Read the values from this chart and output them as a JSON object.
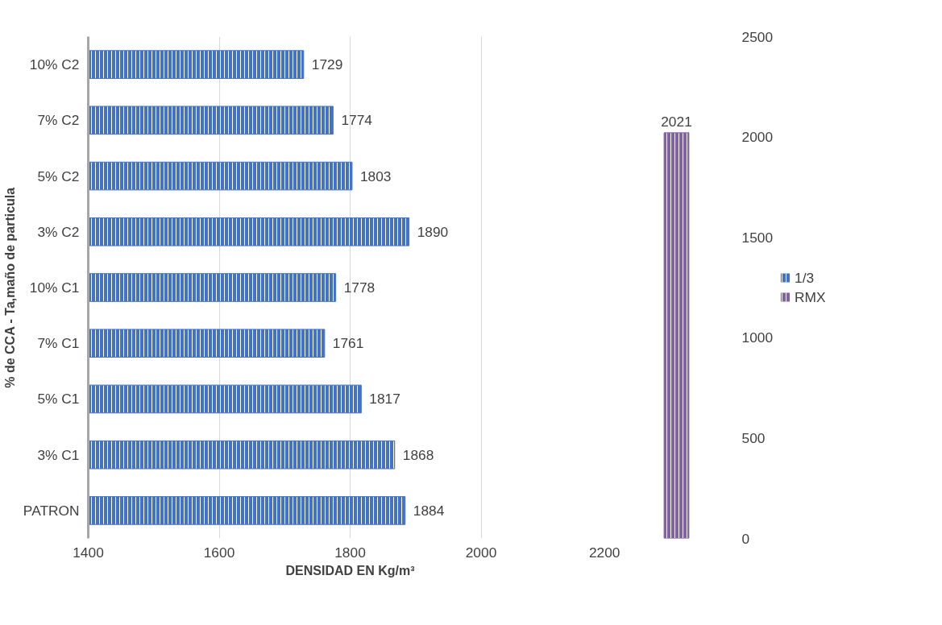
{
  "chart_data": [
    {
      "type": "bar",
      "orientation": "horizontal",
      "xlabel": "DENSIDAD EN Kg/m³",
      "ylabel": "% de CCA - Ta,maño de particula",
      "categories": [
        "10% C2",
        "7% C2",
        "5% C2",
        "3% C2",
        "10% C1",
        "7% C1",
        "5% C1",
        "3% C1",
        "PATRON"
      ],
      "series": [
        {
          "name": "1/3",
          "color": "#4472c4",
          "values": [
            1729,
            1774,
            1803,
            1890,
            1778,
            1761,
            1817,
            1868,
            1884
          ]
        }
      ],
      "xlim": [
        1400,
        2200
      ],
      "xticks": [
        1400,
        1600,
        1800,
        2000,
        2200
      ],
      "data_labels": true,
      "grid": "x"
    },
    {
      "type": "bar",
      "categories": [
        null
      ],
      "series": [
        {
          "name": "RMX",
          "color": "#8064a2",
          "values": [
            2021
          ]
        }
      ],
      "ylim": [
        0,
        2500
      ],
      "yticks": [
        0,
        500,
        1000,
        1500,
        2000,
        2500
      ],
      "data_labels": true,
      "tick_labels": "y",
      "legend": "right"
    }
  ]
}
